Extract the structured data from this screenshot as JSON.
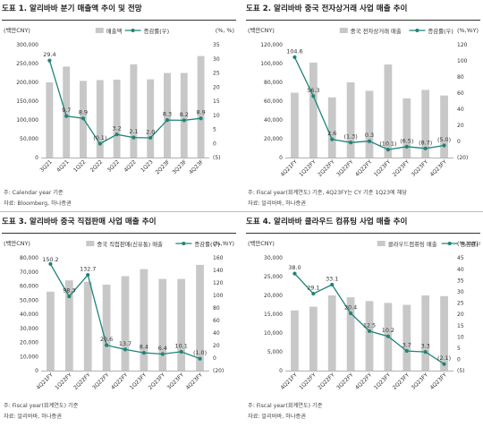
{
  "colors": {
    "bar": "#c8c8c8",
    "line": "#1e8478",
    "text": "#333333"
  },
  "panels": [
    {
      "title": "도표 1. 알리바바 분기 매출액 추이 및 전망",
      "notes": [
        "주: Calendar year 기준",
        "자료: Bloomberg, 하나증권"
      ],
      "chart_data": {
        "type": "bar",
        "categories": [
          "3Q21",
          "4Q21",
          "1Q22",
          "2Q22",
          "3Q22",
          "4Q22",
          "1Q23",
          "2Q23F",
          "3Q23F",
          "4Q23F"
        ],
        "series": [
          {
            "name": "매출액",
            "type": "bar",
            "axis": "left",
            "values": [
              200000,
              242000,
              204000,
              206000,
              207000,
              248000,
              208000,
              225000,
              225000,
              270000
            ]
          },
          {
            "name": "증감률(우)",
            "type": "line",
            "axis": "right",
            "values": [
              29.4,
              9.7,
              8.9,
              -0.1,
              3.2,
              2.1,
              2.0,
              8.3,
              8.2,
              8.9
            ],
            "labels": [
              "29.4",
              "9.7",
              "8.9",
              "(0.1)",
              "3.2",
              "2.1",
              "2.0",
              "8.3",
              "8.2",
              "8.9"
            ]
          }
        ],
        "ylabel_left": "(백만CNY)",
        "ylabel_right": "(%, %)",
        "ylim_left": [
          0,
          300000
        ],
        "ylim_right": [
          -5,
          35
        ],
        "yticks_left": [
          "0",
          "50,000",
          "100,000",
          "150,000",
          "200,000",
          "250,000",
          "300,000"
        ],
        "yticks_right": [
          "(5)",
          "0",
          "5",
          "10",
          "15",
          "20",
          "25",
          "30",
          "35"
        ],
        "legend": "top-center"
      }
    },
    {
      "title": "도표 2. 알리바바 중국 전자상거래 사업 매출 추이",
      "notes": [
        "주: Fiscal year(회계연도) 기준, 4Q23FY는 CY 기준 1Q23에 해당",
        "자료: 알리바바, 하나증권"
      ],
      "chart_data": {
        "type": "bar",
        "categories": [
          "4Q21FY",
          "1Q22FY",
          "2Q22FY",
          "3Q22FY",
          "4Q22FY",
          "1Q23FY",
          "2Q23FY",
          "3Q23FY",
          "4Q23FY"
        ],
        "series": [
          {
            "name": "중국 전자상거래 매출",
            "type": "bar",
            "axis": "left",
            "values": [
              69000,
              101000,
              64000,
              80000,
              71000,
              99000,
              63000,
              72000,
              66000
            ]
          },
          {
            "name": "증감률(우)",
            "type": "line",
            "axis": "right",
            "values": [
              104.6,
              56.3,
              2.6,
              -1.3,
              0.3,
              -10.1,
              -6.5,
              -8.7,
              -5.0
            ],
            "labels": [
              "104.6",
              "56.3",
              "2.6",
              "(1.3)",
              "0.3",
              "(10.1)",
              "(6.5)",
              "(8.7)",
              "(5.0)"
            ]
          }
        ],
        "ylabel_left": "(백만CNY)",
        "ylabel_right": "(%,YoY)",
        "ylim_left": [
          0,
          120000
        ],
        "ylim_right": [
          -20,
          120
        ],
        "yticks_left": [
          "0",
          "20,000",
          "40,000",
          "60,000",
          "80,000",
          "100,000",
          "120,000"
        ],
        "yticks_right": [
          "(20)",
          "0",
          "20",
          "40",
          "60",
          "80",
          "100",
          "120"
        ],
        "legend": "top-center"
      }
    },
    {
      "title": "도표 3. 알리바바 중국 직접판매 사업 매출 추이",
      "notes": [
        "주: Fiscal year(회계연도) 기준",
        "자료: 알리바바, 하나증권"
      ],
      "chart_data": {
        "type": "bar",
        "categories": [
          "4Q21FY",
          "1Q22FY",
          "2Q22FY",
          "3Q22FY",
          "4Q22FY",
          "1Q23FY",
          "2Q23FY",
          "3Q23FY",
          "4Q23FY"
        ],
        "series": [
          {
            "name": "중국 직접판매(신유통) 매출",
            "type": "bar",
            "axis": "left",
            "values": [
              56000,
              64000,
              63000,
              61000,
              67000,
              72000,
              65000,
              65000,
              75000
            ]
          },
          {
            "name": "증감률(우)",
            "type": "line",
            "axis": "right",
            "values": [
              150.2,
              98.3,
              132.7,
              20.6,
              13.7,
              8.4,
              6.4,
              10.1,
              -1.0
            ],
            "labels": [
              "150.2",
              "98.3",
              "132.7",
              "20.6",
              "13.7",
              "8.4",
              "6.4",
              "10.1",
              "(1.0)"
            ]
          }
        ],
        "ylabel_left": "(백만CNY)",
        "ylabel_right": "(%,YoY)",
        "ylim_left": [
          0,
          80000
        ],
        "ylim_right": [
          -20,
          160
        ],
        "yticks_left": [
          "0",
          "10,000",
          "20,000",
          "30,000",
          "40,000",
          "50,000",
          "60,000",
          "70,000",
          "80,000"
        ],
        "yticks_right": [
          "(20)",
          "0",
          "20",
          "40",
          "60",
          "80",
          "100",
          "120",
          "140",
          "160"
        ],
        "legend": "top-center"
      }
    },
    {
      "title": "도표 4. 알리바바 클라우드 컴퓨팅 사업 매출 추이",
      "notes": [
        "주: Fiscal year(회계연도) 기준",
        "자료: 알리바바, 하나증권"
      ],
      "chart_data": {
        "type": "bar",
        "categories": [
          "4Q21FY",
          "1Q22FY",
          "2Q22FY",
          "3Q22FY",
          "4Q22FY",
          "1Q23FY",
          "2Q23FY",
          "3Q23FY",
          "4Q23FY"
        ],
        "series": [
          {
            "name": "클라우드컴퓨팅 매출",
            "type": "bar",
            "axis": "left",
            "values": [
              16000,
              17000,
              20000,
              19500,
              18500,
              18000,
              17500,
              20000,
              19800
            ]
          },
          {
            "name": "증감률(우)",
            "type": "line",
            "axis": "right",
            "values": [
              38.0,
              29.1,
              33.1,
              20.4,
              12.5,
              10.2,
              3.7,
              3.3,
              -2.1
            ],
            "labels": [
              "38.0",
              "29.1",
              "33.1",
              "20.4",
              "12.5",
              "10.2",
              "3.7",
              "3.3",
              "(2.1)"
            ]
          }
        ],
        "ylabel_left": "(백만CNY)",
        "ylabel_right": "(%,YoY)",
        "ylim_left": [
          0,
          30000
        ],
        "ylim_right": [
          -5,
          45
        ],
        "yticks_left": [
          "0",
          "5,000",
          "10,000",
          "15,000",
          "20,000",
          "25,000",
          "30,000"
        ],
        "yticks_right": [
          "(5)",
          "0",
          "5",
          "10",
          "15",
          "20",
          "25",
          "30",
          "35",
          "40",
          "45"
        ],
        "legend": "top-right"
      }
    }
  ]
}
